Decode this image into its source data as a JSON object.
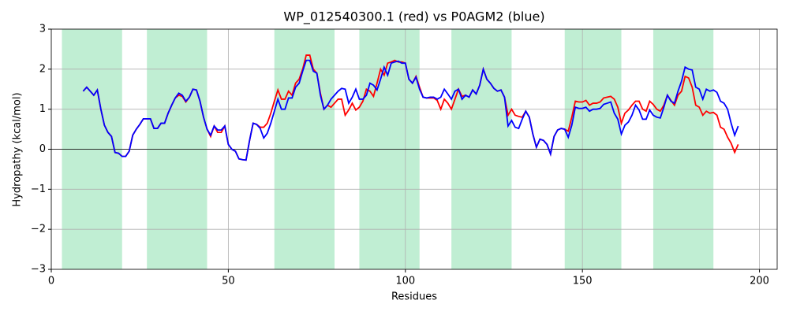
{
  "chart_data": {
    "type": "line",
    "title": "WP_012540300.1 (red) vs P0AGM2 (blue)",
    "xlabel": "Residues",
    "ylabel": "Hydropathy (kcal/mol)",
    "xlim": [
      0,
      205
    ],
    "ylim": [
      -3,
      3
    ],
    "xticks": [
      0,
      50,
      100,
      150,
      200
    ],
    "yticks": [
      {
        "value": -3,
        "label": "−3"
      },
      {
        "value": -2,
        "label": "−2"
      },
      {
        "value": -1,
        "label": "−1"
      },
      0,
      1,
      2,
      3
    ],
    "grid": true,
    "axhline": 0,
    "spans": [
      [
        3,
        20
      ],
      [
        27,
        44
      ],
      [
        63,
        80
      ],
      [
        87,
        104
      ],
      [
        113,
        130
      ],
      [
        145,
        161
      ],
      [
        170,
        187
      ]
    ],
    "span_color": "#c0eed3",
    "x": [
      9,
      10,
      11,
      12,
      13,
      14,
      15,
      16,
      17,
      18,
      19,
      20,
      21,
      22,
      23,
      24,
      25,
      26,
      27,
      28,
      29,
      30,
      31,
      32,
      33,
      34,
      35,
      36,
      37,
      38,
      39,
      40,
      41,
      42,
      43,
      44,
      45,
      46,
      47,
      48,
      49,
      50,
      51,
      52,
      53,
      54,
      55,
      56,
      57,
      58,
      59,
      60,
      61,
      62,
      63,
      64,
      65,
      66,
      67,
      68,
      69,
      70,
      71,
      72,
      73,
      74,
      75,
      76,
      77,
      78,
      79,
      80,
      81,
      82,
      83,
      84,
      85,
      86,
      87,
      88,
      89,
      90,
      91,
      92,
      93,
      94,
      95,
      96,
      97,
      98,
      99,
      100,
      101,
      102,
      103,
      104,
      105,
      106,
      107,
      108,
      109,
      110,
      111,
      112,
      113,
      114,
      115,
      116,
      117,
      118,
      119,
      120,
      121,
      122,
      123,
      124,
      125,
      126,
      127,
      128,
      129,
      130,
      131,
      132,
      133,
      134,
      135,
      136,
      137,
      138,
      139,
      140,
      141,
      142,
      143,
      144,
      145,
      146,
      147,
      148,
      149,
      150,
      151,
      152,
      153,
      154,
      155,
      156,
      157,
      158,
      159,
      160,
      161,
      162,
      163,
      164,
      165,
      166,
      167,
      168,
      169,
      170,
      171,
      172,
      173,
      174,
      175,
      176,
      177,
      178,
      179,
      180,
      181,
      182,
      183,
      184,
      185,
      186,
      187,
      188,
      189,
      190,
      191,
      192,
      193,
      194
    ],
    "series": [
      {
        "color": "#ff0000",
        "values": [
          1.45,
          1.55,
          1.45,
          1.35,
          1.48,
          1.0,
          0.6,
          0.42,
          0.32,
          -0.08,
          -0.1,
          -0.18,
          -0.18,
          -0.05,
          0.35,
          0.5,
          0.62,
          0.76,
          0.76,
          0.76,
          0.52,
          0.52,
          0.65,
          0.65,
          0.9,
          1.1,
          1.28,
          1.35,
          1.32,
          1.18,
          1.3,
          1.5,
          1.48,
          1.2,
          0.8,
          0.5,
          0.32,
          0.58,
          0.42,
          0.42,
          0.58,
          0.12,
          0.0,
          -0.05,
          -0.24,
          -0.26,
          -0.27,
          0.22,
          0.65,
          0.62,
          0.55,
          0.55,
          0.65,
          0.9,
          1.2,
          1.48,
          1.25,
          1.25,
          1.45,
          1.35,
          1.65,
          1.75,
          2.0,
          2.35,
          2.35,
          2.0,
          1.9,
          1.4,
          1.0,
          1.1,
          1.05,
          1.15,
          1.25,
          1.25,
          0.85,
          0.98,
          1.15,
          0.98,
          1.05,
          1.2,
          1.5,
          1.45,
          1.32,
          1.65,
          2.0,
          1.85,
          2.15,
          2.18,
          2.22,
          2.18,
          2.18,
          2.15,
          1.75,
          1.65,
          1.82,
          1.55,
          1.3,
          1.28,
          1.28,
          1.28,
          1.22,
          1.0,
          1.25,
          1.15,
          1.0,
          1.25,
          1.5,
          1.32,
          1.35,
          1.3,
          1.48,
          1.38,
          1.6,
          2.0,
          1.75,
          1.65,
          1.52,
          1.45,
          1.48,
          1.3,
          0.85,
          1.0,
          0.85,
          0.82,
          0.8,
          0.95,
          0.8,
          0.38,
          0.05,
          0.25,
          0.22,
          0.12,
          -0.12,
          0.32,
          0.48,
          0.52,
          0.5,
          0.45,
          0.8,
          1.2,
          1.18,
          1.18,
          1.22,
          1.1,
          1.15,
          1.15,
          1.18,
          1.28,
          1.3,
          1.32,
          1.25,
          1.05,
          0.65,
          0.9,
          0.98,
          1.1,
          1.2,
          1.2,
          1.0,
          0.95,
          1.2,
          1.12,
          1.0,
          0.95,
          1.1,
          1.35,
          1.22,
          1.1,
          1.35,
          1.45,
          1.82,
          1.78,
          1.55,
          1.1,
          1.05,
          0.85,
          0.95,
          0.9,
          0.92,
          0.85,
          0.55,
          0.5,
          0.3,
          0.15,
          -0.08,
          0.12
        ]
      },
      {
        "color": "#0000ff",
        "values": [
          1.45,
          1.55,
          1.45,
          1.35,
          1.48,
          1.0,
          0.6,
          0.42,
          0.32,
          -0.08,
          -0.1,
          -0.18,
          -0.18,
          -0.05,
          0.35,
          0.5,
          0.62,
          0.76,
          0.76,
          0.76,
          0.52,
          0.52,
          0.65,
          0.65,
          0.9,
          1.1,
          1.28,
          1.4,
          1.35,
          1.2,
          1.3,
          1.5,
          1.48,
          1.2,
          0.8,
          0.5,
          0.35,
          0.58,
          0.48,
          0.48,
          0.58,
          0.12,
          0.0,
          -0.05,
          -0.24,
          -0.26,
          -0.27,
          0.22,
          0.65,
          0.62,
          0.52,
          0.28,
          0.4,
          0.65,
          0.95,
          1.25,
          1.0,
          1.0,
          1.28,
          1.28,
          1.55,
          1.65,
          1.95,
          2.22,
          2.22,
          1.95,
          1.9,
          1.35,
          1.0,
          1.1,
          1.25,
          1.35,
          1.45,
          1.52,
          1.5,
          1.15,
          1.3,
          1.5,
          1.25,
          1.25,
          1.35,
          1.65,
          1.6,
          1.48,
          1.75,
          2.05,
          1.85,
          2.15,
          2.18,
          2.2,
          2.15,
          2.15,
          1.75,
          1.65,
          1.8,
          1.5,
          1.3,
          1.28,
          1.3,
          1.3,
          1.25,
          1.3,
          1.5,
          1.38,
          1.25,
          1.45,
          1.5,
          1.25,
          1.35,
          1.3,
          1.48,
          1.38,
          1.6,
          2.0,
          1.75,
          1.65,
          1.52,
          1.45,
          1.48,
          1.3,
          0.58,
          0.72,
          0.55,
          0.52,
          0.75,
          0.95,
          0.8,
          0.38,
          0.05,
          0.25,
          0.22,
          0.12,
          -0.12,
          0.32,
          0.48,
          0.52,
          0.5,
          0.3,
          0.6,
          1.05,
          1.02,
          1.02,
          1.05,
          0.95,
          1.0,
          1.0,
          1.02,
          1.12,
          1.15,
          1.18,
          0.9,
          0.75,
          0.38,
          0.6,
          0.68,
          0.85,
          1.1,
          0.98,
          0.75,
          0.75,
          0.98,
          0.85,
          0.8,
          0.78,
          1.05,
          1.35,
          1.2,
          1.15,
          1.45,
          1.7,
          2.05,
          2.0,
          1.98,
          1.55,
          1.5,
          1.25,
          1.5,
          1.45,
          1.48,
          1.42,
          1.2,
          1.15,
          1.0,
          0.65,
          0.35,
          0.58
        ]
      }
    ]
  }
}
